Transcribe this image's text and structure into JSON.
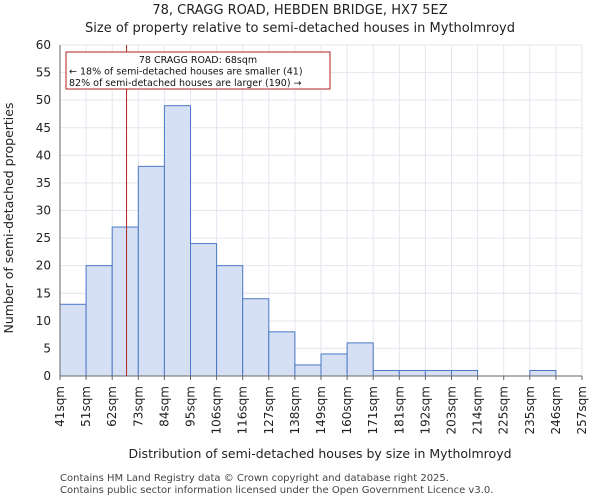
{
  "header": {
    "line1": "78, CRAGG ROAD, HEBDEN BRIDGE, HX7 5EZ",
    "line2": "Size of property relative to semi-detached houses in Mytholmroyd"
  },
  "footer": {
    "line1": "Contains HM Land Registry data © Crown copyright and database right 2025.",
    "line2": "Contains public sector information licensed under the Open Government Licence v3.0."
  },
  "chart_data": {
    "type": "bar",
    "title": "Size of property relative to semi-detached houses in Mytholmroyd",
    "xlabel": "Distribution of semi-detached houses by size in Mytholmroyd",
    "ylabel": "Number of semi-detached properties",
    "bin_edges": [
      "41sqm",
      "51sqm",
      "62sqm",
      "73sqm",
      "84sqm",
      "95sqm",
      "106sqm",
      "116sqm",
      "127sqm",
      "138sqm",
      "149sqm",
      "160sqm",
      "171sqm",
      "181sqm",
      "192sqm",
      "203sqm",
      "214sqm",
      "225sqm",
      "235sqm",
      "246sqm",
      "257sqm"
    ],
    "values": [
      13,
      20,
      27,
      38,
      49,
      24,
      20,
      14,
      8,
      2,
      4,
      6,
      1,
      1,
      1,
      1,
      0,
      0,
      1,
      0
    ],
    "ylim": [
      0,
      60
    ],
    "yticks": [
      0,
      5,
      10,
      15,
      20,
      25,
      30,
      35,
      40,
      45,
      50,
      55,
      60
    ],
    "marker": {
      "value_sqm": 68,
      "bin_position": 2.55
    },
    "annotation": {
      "line1": "78 CRAGG ROAD: 68sqm",
      "line2": "← 18% of semi-detached houses are smaller (41)",
      "line3": "82% of semi-detached houses are larger (190) →"
    },
    "colors": {
      "bar_fill": "#d6e0f4",
      "bar_stroke": "#4a77c6",
      "marker": "#b22222",
      "grid": "#e2e6ee"
    }
  }
}
